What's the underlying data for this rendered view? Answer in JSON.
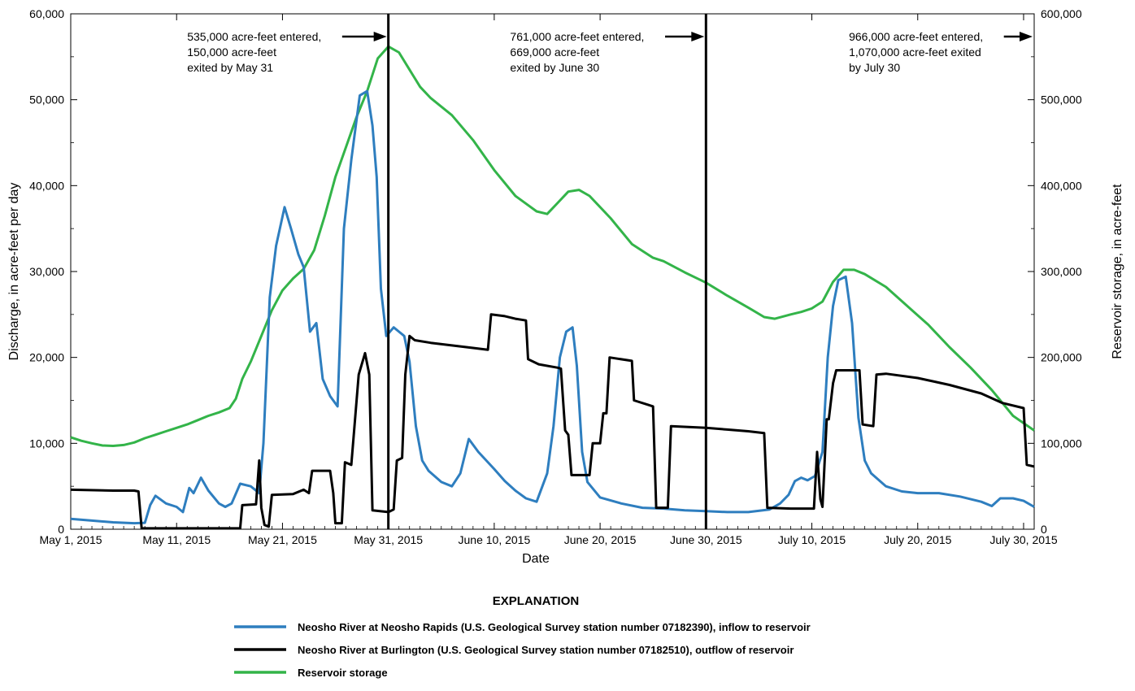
{
  "chart_data": {
    "type": "line",
    "xlabel": "Date",
    "ylabel_left": "Discharge, in acre-feet per day",
    "ylabel_right": "Reservoir storage, in acre-feet",
    "x_domain_days": [
      0,
      91
    ],
    "x_ticks": [
      {
        "day": 0,
        "label": "May 1, 2015"
      },
      {
        "day": 10,
        "label": "May 11, 2015"
      },
      {
        "day": 20,
        "label": "May 21, 2015"
      },
      {
        "day": 30,
        "label": "May 31, 2015"
      },
      {
        "day": 40,
        "label": "June 10, 2015"
      },
      {
        "day": 50,
        "label": "June 20, 2015"
      },
      {
        "day": 60,
        "label": "June 30, 2015"
      },
      {
        "day": 70,
        "label": "July 10, 2015"
      },
      {
        "day": 80,
        "label": "July 20, 2015"
      },
      {
        "day": 90,
        "label": "July 30, 2015"
      }
    ],
    "ylim_left": [
      0,
      60000
    ],
    "ylim_right": [
      0,
      600000
    ],
    "y_ticks_left": [
      "0",
      "10,000",
      "20,000",
      "30,000",
      "40,000",
      "50,000",
      "60,000"
    ],
    "y_ticks_right": [
      "0",
      "100,000",
      "200,000",
      "300,000",
      "400,000",
      "500,000",
      "600,000"
    ],
    "vertical_lines_days": [
      30,
      60
    ],
    "annotations": [
      {
        "lines": [
          "535,000 acre-feet entered,",
          "150,000 acre-feet",
          "exited by May 31"
        ],
        "arrow_to_day": 30,
        "text_start_day": 11
      },
      {
        "lines": [
          "761,000 acre-feet entered,",
          "669,000 acre-feet",
          "exited by June 30"
        ],
        "arrow_to_day": 60,
        "text_start_day": 41.5
      },
      {
        "lines": [
          "966,000 acre-feet entered,",
          "1,070,000 acre-feet exited",
          "by July 30"
        ],
        "arrow_to_day": 91,
        "text_start_day": 73.5
      }
    ],
    "series": [
      {
        "name": "Neosho River at Neosho Rapids (U.S. Geological Survey station number 07182390), inflow to reservoir",
        "axis": "left",
        "color": "#2e7ebf",
        "points": [
          [
            0,
            1200
          ],
          [
            2,
            1000
          ],
          [
            4,
            800
          ],
          [
            6,
            700
          ],
          [
            7,
            750
          ],
          [
            7.5,
            2800
          ],
          [
            8,
            3900
          ],
          [
            9,
            3000
          ],
          [
            10,
            2600
          ],
          [
            10.6,
            2000
          ],
          [
            11.2,
            4800
          ],
          [
            11.6,
            4200
          ],
          [
            12.3,
            6000
          ],
          [
            13,
            4500
          ],
          [
            14,
            3000
          ],
          [
            14.6,
            2600
          ],
          [
            15.2,
            3000
          ],
          [
            16,
            5300
          ],
          [
            17,
            5000
          ],
          [
            17.8,
            4200
          ],
          [
            18.2,
            10000
          ],
          [
            18.8,
            27000
          ],
          [
            19.4,
            33000
          ],
          [
            20.2,
            37500
          ],
          [
            20.8,
            35000
          ],
          [
            21.5,
            32000
          ],
          [
            22,
            30500
          ],
          [
            22.6,
            23000
          ],
          [
            23.2,
            24000
          ],
          [
            23.8,
            17500
          ],
          [
            24.5,
            15500
          ],
          [
            25.2,
            14300
          ],
          [
            25.8,
            35000
          ],
          [
            26.5,
            43000
          ],
          [
            27.3,
            50500
          ],
          [
            28,
            51000
          ],
          [
            28.5,
            47000
          ],
          [
            28.9,
            41000
          ],
          [
            29.3,
            28000
          ],
          [
            29.8,
            22500
          ],
          [
            30.5,
            23500
          ],
          [
            31,
            23000
          ],
          [
            31.5,
            22500
          ],
          [
            32,
            19500
          ],
          [
            32.6,
            12000
          ],
          [
            33.2,
            8000
          ],
          [
            33.8,
            6800
          ],
          [
            35,
            5500
          ],
          [
            36,
            5000
          ],
          [
            36.8,
            6500
          ],
          [
            37.6,
            10500
          ],
          [
            38.5,
            9000
          ],
          [
            40,
            7000
          ],
          [
            41,
            5600
          ],
          [
            42,
            4500
          ],
          [
            43,
            3600
          ],
          [
            44,
            3200
          ],
          [
            45,
            6500
          ],
          [
            45.6,
            12000
          ],
          [
            46.2,
            20000
          ],
          [
            46.8,
            23000
          ],
          [
            47.4,
            23500
          ],
          [
            47.8,
            19000
          ],
          [
            48.3,
            9000
          ],
          [
            48.8,
            5500
          ],
          [
            50,
            3700
          ],
          [
            52,
            3000
          ],
          [
            54,
            2500
          ],
          [
            56,
            2400
          ],
          [
            58,
            2200
          ],
          [
            60,
            2100
          ],
          [
            62,
            2000
          ],
          [
            64,
            2000
          ],
          [
            66,
            2300
          ],
          [
            67,
            3000
          ],
          [
            67.8,
            4000
          ],
          [
            68.4,
            5600
          ],
          [
            69,
            6000
          ],
          [
            69.6,
            5700
          ],
          [
            70.3,
            6200
          ],
          [
            71,
            9000
          ],
          [
            71.5,
            20000
          ],
          [
            72,
            26000
          ],
          [
            72.5,
            29000
          ],
          [
            73.2,
            29400
          ],
          [
            73.8,
            24000
          ],
          [
            74.4,
            13000
          ],
          [
            75,
            8000
          ],
          [
            75.6,
            6500
          ],
          [
            77,
            5000
          ],
          [
            78.5,
            4400
          ],
          [
            80,
            4200
          ],
          [
            82,
            4200
          ],
          [
            84,
            3800
          ],
          [
            86,
            3200
          ],
          [
            87,
            2700
          ],
          [
            87.8,
            3600
          ],
          [
            89,
            3600
          ],
          [
            90,
            3300
          ],
          [
            91,
            2600
          ]
        ]
      },
      {
        "name": "Neosho River at Burlington (U.S. Geological Survey station number 07182510), outflow of reservoir",
        "axis": "left",
        "color": "#000000",
        "points": [
          [
            0,
            4600
          ],
          [
            4,
            4500
          ],
          [
            6,
            4500
          ],
          [
            6.4,
            4400
          ],
          [
            6.7,
            100
          ],
          [
            10,
            100
          ],
          [
            15,
            100
          ],
          [
            16,
            100
          ],
          [
            16.2,
            2800
          ],
          [
            17.5,
            2900
          ],
          [
            17.8,
            8000
          ],
          [
            18,
            2500
          ],
          [
            18.3,
            500
          ],
          [
            18.7,
            300
          ],
          [
            19,
            4000
          ],
          [
            21,
            4100
          ],
          [
            22,
            4600
          ],
          [
            22.5,
            4200
          ],
          [
            22.8,
            6800
          ],
          [
            24.5,
            6800
          ],
          [
            24.8,
            4200
          ],
          [
            25,
            700
          ],
          [
            25.6,
            700
          ],
          [
            25.9,
            7800
          ],
          [
            26.5,
            7500
          ],
          [
            26.8,
            12000
          ],
          [
            27.2,
            18000
          ],
          [
            27.8,
            20500
          ],
          [
            28.2,
            18000
          ],
          [
            28.5,
            2200
          ],
          [
            30,
            2000
          ],
          [
            30.5,
            2300
          ],
          [
            30.8,
            8000
          ],
          [
            31.3,
            8300
          ],
          [
            31.6,
            18000
          ],
          [
            32,
            22500
          ],
          [
            32.5,
            22000
          ],
          [
            34,
            21700
          ],
          [
            36,
            21400
          ],
          [
            38,
            21100
          ],
          [
            39.4,
            20900
          ],
          [
            39.7,
            25000
          ],
          [
            41,
            24800
          ],
          [
            42,
            24500
          ],
          [
            43,
            24300
          ],
          [
            43.2,
            19800
          ],
          [
            44.2,
            19200
          ],
          [
            46,
            18800
          ],
          [
            46.3,
            18700
          ],
          [
            46.7,
            11500
          ],
          [
            47,
            11000
          ],
          [
            47.3,
            6300
          ],
          [
            49,
            6300
          ],
          [
            49.3,
            10000
          ],
          [
            50,
            10000
          ],
          [
            50.3,
            13500
          ],
          [
            50.6,
            13500
          ],
          [
            50.9,
            20000
          ],
          [
            53,
            19600
          ],
          [
            53.2,
            15000
          ],
          [
            54.5,
            14500
          ],
          [
            55,
            14300
          ],
          [
            55.3,
            2500
          ],
          [
            56.4,
            2500
          ],
          [
            56.7,
            12000
          ],
          [
            60,
            11800
          ],
          [
            62,
            11600
          ],
          [
            64,
            11400
          ],
          [
            65.5,
            11200
          ],
          [
            65.8,
            2500
          ],
          [
            68,
            2400
          ],
          [
            70.2,
            2400
          ],
          [
            70.5,
            9000
          ],
          [
            70.8,
            3500
          ],
          [
            71,
            2600
          ],
          [
            71.4,
            12800
          ],
          [
            71.6,
            12800
          ],
          [
            72,
            17000
          ],
          [
            72.3,
            18500
          ],
          [
            74.5,
            18500
          ],
          [
            74.8,
            12200
          ],
          [
            75.8,
            12000
          ],
          [
            76.1,
            18000
          ],
          [
            77,
            18100
          ],
          [
            80,
            17600
          ],
          [
            83,
            16800
          ],
          [
            86,
            15800
          ],
          [
            88,
            14700
          ],
          [
            90,
            14100
          ],
          [
            90.3,
            7500
          ],
          [
            91,
            7300
          ]
        ]
      },
      {
        "name": "Reservoir storage",
        "axis": "right",
        "color": "#33b449",
        "points": [
          [
            0,
            107000
          ],
          [
            1,
            103000
          ],
          [
            2,
            100000
          ],
          [
            3,
            97500
          ],
          [
            4,
            97000
          ],
          [
            5,
            98000
          ],
          [
            6,
            101000
          ],
          [
            7,
            106000
          ],
          [
            8,
            110000
          ],
          [
            9,
            114000
          ],
          [
            10,
            118000
          ],
          [
            11,
            122000
          ],
          [
            12,
            127000
          ],
          [
            13,
            132000
          ],
          [
            14,
            136000
          ],
          [
            15,
            141000
          ],
          [
            15.6,
            152000
          ],
          [
            16.2,
            175000
          ],
          [
            17,
            195000
          ],
          [
            18,
            225000
          ],
          [
            19,
            255000
          ],
          [
            20,
            278000
          ],
          [
            21,
            292000
          ],
          [
            22,
            303000
          ],
          [
            23,
            325000
          ],
          [
            24,
            365000
          ],
          [
            25,
            410000
          ],
          [
            26,
            445000
          ],
          [
            27,
            480000
          ],
          [
            28,
            510000
          ],
          [
            29,
            548000
          ],
          [
            30,
            562000
          ],
          [
            31,
            555000
          ],
          [
            32,
            535000
          ],
          [
            33,
            515000
          ],
          [
            34,
            502000
          ],
          [
            36,
            482000
          ],
          [
            38,
            453000
          ],
          [
            40,
            418000
          ],
          [
            42,
            388000
          ],
          [
            44,
            370000
          ],
          [
            45,
            367000
          ],
          [
            46,
            380000
          ],
          [
            47,
            393000
          ],
          [
            48,
            395000
          ],
          [
            49,
            388000
          ],
          [
            51,
            362000
          ],
          [
            53,
            332000
          ],
          [
            55,
            316000
          ],
          [
            56,
            312000
          ],
          [
            58,
            299000
          ],
          [
            60,
            287000
          ],
          [
            62,
            272000
          ],
          [
            64,
            258000
          ],
          [
            65.5,
            247000
          ],
          [
            66.5,
            245000
          ],
          [
            68,
            250000
          ],
          [
            69,
            253000
          ],
          [
            70,
            257000
          ],
          [
            71,
            265000
          ],
          [
            72,
            288000
          ],
          [
            73,
            302000
          ],
          [
            74,
            302000
          ],
          [
            75,
            297000
          ],
          [
            77,
            282000
          ],
          [
            79,
            260000
          ],
          [
            81,
            238000
          ],
          [
            83,
            212000
          ],
          [
            85,
            188000
          ],
          [
            87,
            162000
          ],
          [
            89,
            132000
          ],
          [
            91,
            115000
          ]
        ]
      }
    ],
    "legend_title": "EXPLANATION"
  }
}
